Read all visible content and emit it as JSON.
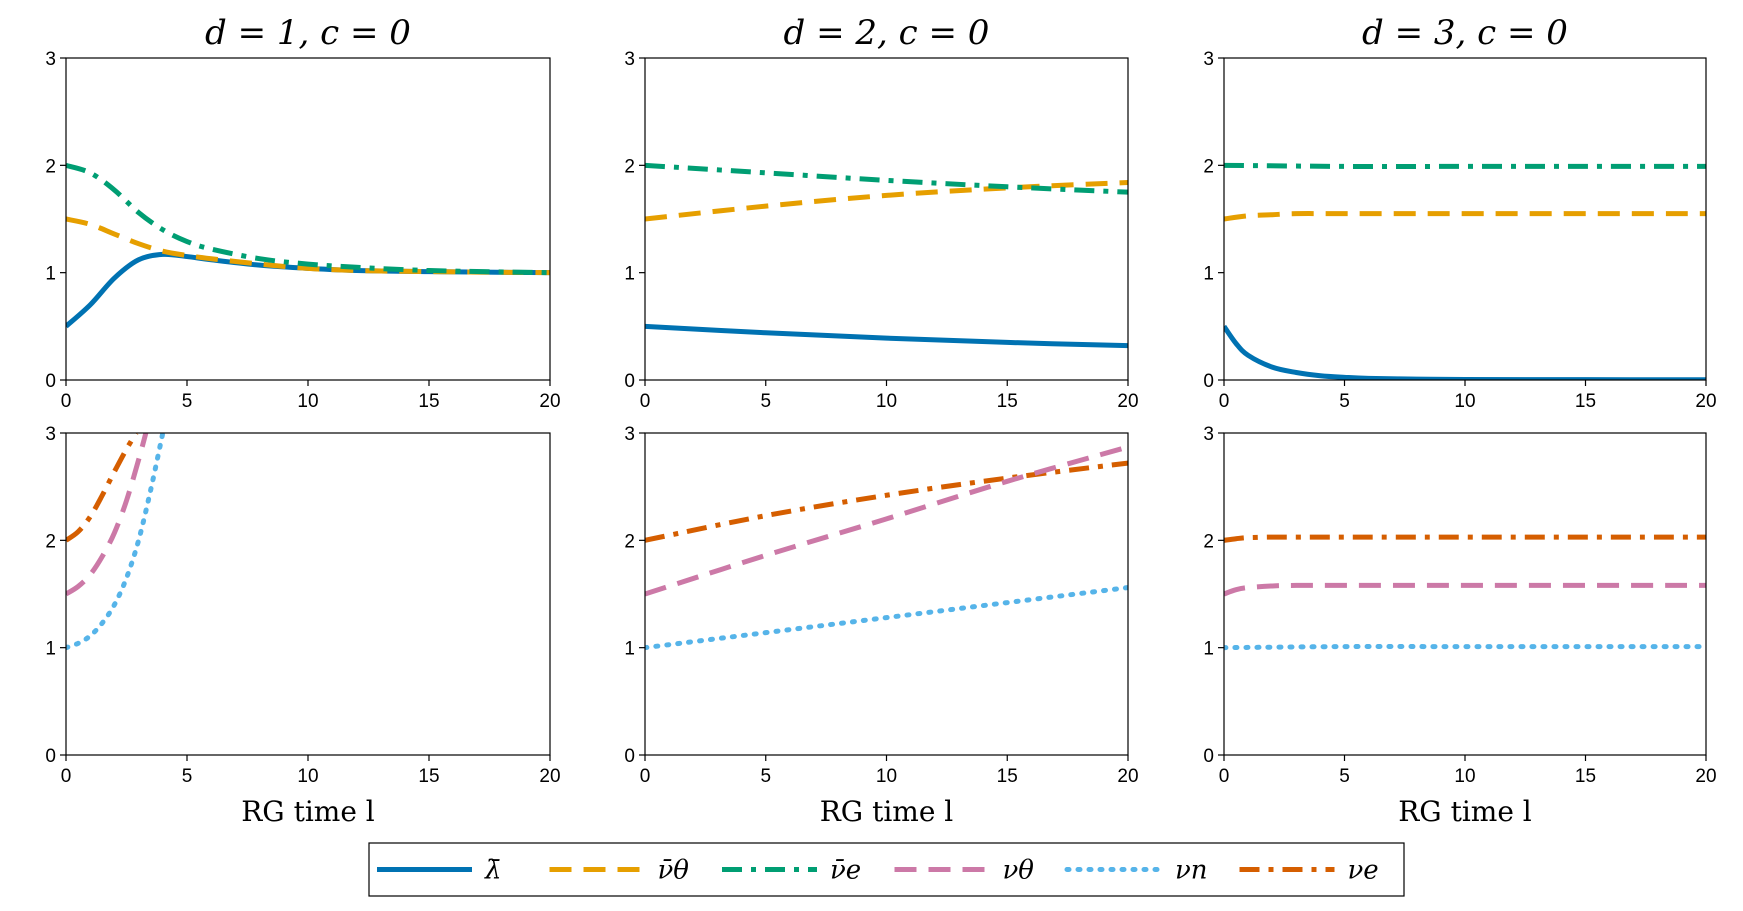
{
  "chart_data": {
    "type": "line",
    "grid": false,
    "legend_position": "bottom-center",
    "legend": [
      {
        "key": "lambda_bar",
        "label": "λ̄",
        "color": "#0072B2",
        "style": "solid"
      },
      {
        "key": "nu_bar_theta",
        "label": "ν̄θ",
        "color": "#E69F00",
        "style": "dashed"
      },
      {
        "key": "nu_bar_e",
        "label": "ν̄e",
        "color": "#009E73",
        "style": "dashdot"
      },
      {
        "key": "nu_theta",
        "label": "νθ",
        "color": "#CC79A7",
        "style": "dashed"
      },
      {
        "key": "nu_n",
        "label": "νn",
        "color": "#56B4E9",
        "style": "dotted"
      },
      {
        "key": "nu_e",
        "label": "νe",
        "color": "#D55E00",
        "style": "dashdot"
      }
    ],
    "x_ticks": [
      0,
      5,
      10,
      15,
      20
    ],
    "y_ticks": [
      0,
      1,
      2,
      3
    ],
    "xlim": [
      0,
      20
    ],
    "ylim": [
      0,
      3
    ],
    "panels": [
      {
        "id": "p00",
        "title": "d = 1,  c = 0",
        "xlabel": "",
        "series": [
          {
            "key": "lambda_bar",
            "x": [
              0,
              1,
              2,
              3,
              4,
              5,
              6,
              8,
              10,
              12,
              15,
              20
            ],
            "y": [
              0.5,
              0.7,
              0.95,
              1.12,
              1.17,
              1.15,
              1.12,
              1.07,
              1.04,
              1.02,
              1.01,
              1.0
            ]
          },
          {
            "key": "nu_bar_theta",
            "x": [
              0,
              1,
              2,
              3,
              4,
              5,
              6,
              8,
              10,
              12,
              15,
              20
            ],
            "y": [
              1.5,
              1.45,
              1.36,
              1.27,
              1.2,
              1.16,
              1.13,
              1.08,
              1.04,
              1.02,
              1.01,
              1.0
            ]
          },
          {
            "key": "nu_bar_e",
            "x": [
              0,
              1,
              2,
              3,
              4,
              5,
              6,
              8,
              10,
              12,
              15,
              20
            ],
            "y": [
              2.0,
              1.93,
              1.77,
              1.56,
              1.4,
              1.29,
              1.22,
              1.13,
              1.08,
              1.05,
              1.02,
              1.0
            ]
          }
        ]
      },
      {
        "id": "p01",
        "title": "d = 2,  c = 0",
        "xlabel": "",
        "series": [
          {
            "key": "lambda_bar",
            "x": [
              0,
              5,
              10,
              15,
              20
            ],
            "y": [
              0.5,
              0.44,
              0.39,
              0.35,
              0.32
            ]
          },
          {
            "key": "nu_bar_theta",
            "x": [
              0,
              5,
              10,
              15,
              20
            ],
            "y": [
              1.5,
              1.62,
              1.72,
              1.79,
              1.84
            ]
          },
          {
            "key": "nu_bar_e",
            "x": [
              0,
              5,
              10,
              15,
              20
            ],
            "y": [
              2.0,
              1.93,
              1.86,
              1.8,
              1.75
            ]
          }
        ]
      },
      {
        "id": "p02",
        "title": "d = 3,  c = 0",
        "xlabel": "",
        "series": [
          {
            "key": "lambda_bar",
            "x": [
              0,
              0.5,
              1,
              2,
              3,
              4,
              5,
              6,
              8,
              10,
              15,
              20
            ],
            "y": [
              0.5,
              0.34,
              0.23,
              0.12,
              0.07,
              0.04,
              0.025,
              0.015,
              0.008,
              0.005,
              0.003,
              0.002
            ]
          },
          {
            "key": "nu_bar_theta",
            "x": [
              0,
              1,
              2,
              3,
              5,
              10,
              20
            ],
            "y": [
              1.5,
              1.53,
              1.54,
              1.55,
              1.55,
              1.55,
              1.55
            ]
          },
          {
            "key": "nu_bar_e",
            "x": [
              0,
              5,
              10,
              15,
              20
            ],
            "y": [
              2.0,
              1.99,
              1.99,
              1.99,
              1.99
            ]
          }
        ]
      },
      {
        "id": "p10",
        "title": "",
        "xlabel": "RG time l",
        "series": [
          {
            "key": "nu_e",
            "x": [
              0,
              0.5,
              1,
              1.5,
              2,
              2.5,
              2.9
            ],
            "y": [
              2.0,
              2.08,
              2.22,
              2.42,
              2.64,
              2.85,
              3.0
            ]
          },
          {
            "key": "nu_theta",
            "x": [
              0,
              0.5,
              1,
              1.5,
              2,
              2.5,
              3,
              3.3
            ],
            "y": [
              1.5,
              1.57,
              1.68,
              1.85,
              2.07,
              2.37,
              2.75,
              3.0
            ]
          },
          {
            "key": "nu_n",
            "x": [
              0,
              0.5,
              1,
              1.5,
              2,
              2.5,
              3,
              3.5,
              4
            ],
            "y": [
              1.0,
              1.04,
              1.11,
              1.23,
              1.4,
              1.65,
              2.0,
              2.47,
              3.0
            ]
          }
        ]
      },
      {
        "id": "p11",
        "title": "",
        "xlabel": "RG time l",
        "series": [
          {
            "key": "nu_e",
            "x": [
              0,
              5,
              10,
              15,
              20
            ],
            "y": [
              2.0,
              2.23,
              2.42,
              2.58,
              2.72
            ]
          },
          {
            "key": "nu_theta",
            "x": [
              0,
              5,
              10,
              15,
              20
            ],
            "y": [
              1.5,
              1.86,
              2.2,
              2.55,
              2.87
            ]
          },
          {
            "key": "nu_n",
            "x": [
              0,
              5,
              10,
              15,
              20
            ],
            "y": [
              1.0,
              1.14,
              1.28,
              1.42,
              1.56
            ]
          }
        ]
      },
      {
        "id": "p12",
        "title": "",
        "xlabel": "RG time l",
        "series": [
          {
            "key": "nu_e",
            "x": [
              0,
              0.5,
              1,
              2,
              3,
              5,
              10,
              20
            ],
            "y": [
              2.0,
              2.015,
              2.025,
              2.03,
              2.03,
              2.03,
              2.03,
              2.03
            ]
          },
          {
            "key": "nu_theta",
            "x": [
              0,
              0.5,
              1,
              2,
              3,
              5,
              10,
              20
            ],
            "y": [
              1.5,
              1.54,
              1.56,
              1.575,
              1.58,
              1.58,
              1.58,
              1.58
            ]
          },
          {
            "key": "nu_n",
            "x": [
              0,
              5,
              10,
              20
            ],
            "y": [
              1.0,
              1.01,
              1.01,
              1.01
            ]
          }
        ]
      }
    ]
  }
}
